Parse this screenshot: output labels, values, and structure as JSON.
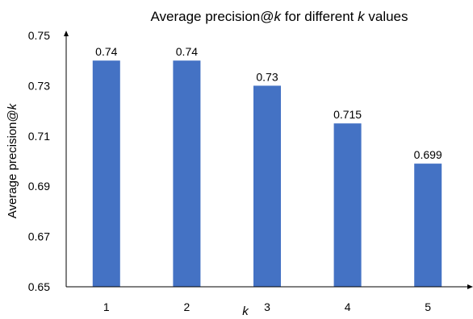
{
  "chart_data": {
    "type": "bar",
    "title_main": "Average precision@",
    "title_k": "k",
    "title_tail": " for different ",
    "title_k2": "k",
    "title_end": " values",
    "xlabel": "k",
    "ylabel_main": "Average precision@",
    "ylabel_k": "k",
    "categories": [
      "1",
      "2",
      "3",
      "4",
      "5"
    ],
    "values": [
      0.74,
      0.74,
      0.73,
      0.715,
      0.699
    ],
    "data_labels": [
      "0.74",
      "0.74",
      "0.73",
      "0.715",
      "0.699"
    ],
    "ylim": [
      0.65,
      0.75
    ],
    "yticks": [
      "0.65",
      "0.67",
      "0.69",
      "0.71",
      "0.73",
      "0.75"
    ],
    "bar_color": "#4472C4",
    "grid": false
  }
}
